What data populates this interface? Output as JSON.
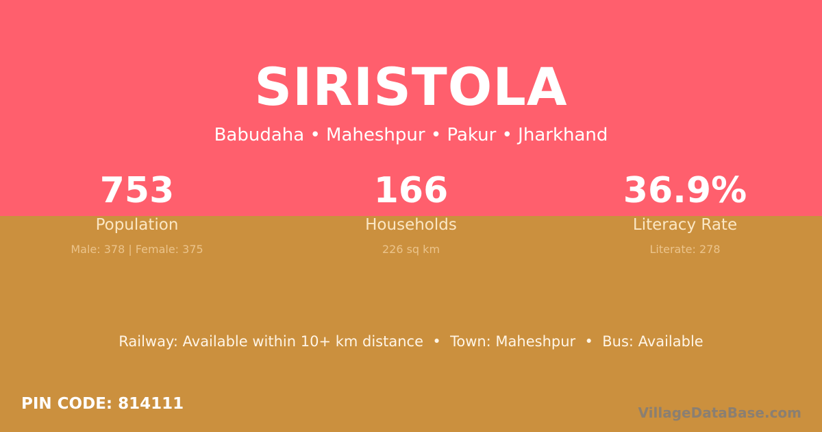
{
  "village": {
    "name": "SIRISTOLA",
    "location": "Babudaha • Maheshpur • Pakur • Jharkhand"
  },
  "stats": [
    {
      "value": "753",
      "label": "Population",
      "detail": "Male: 378 | Female: 375"
    },
    {
      "value": "166",
      "label": "Households",
      "detail": "226 sq km"
    },
    {
      "value": "36.9%",
      "label": "Literacy Rate",
      "detail": "Literate: 278"
    }
  ],
  "access": "Railway: Available within 10+ km distance  •  Town: Maheshpur  •  Bus: Available",
  "pin": "PIN CODE: 814111",
  "brand": "VillageDataBase.com",
  "colors": {
    "top": "#ff5f6d",
    "bottom": "#cb903e"
  }
}
